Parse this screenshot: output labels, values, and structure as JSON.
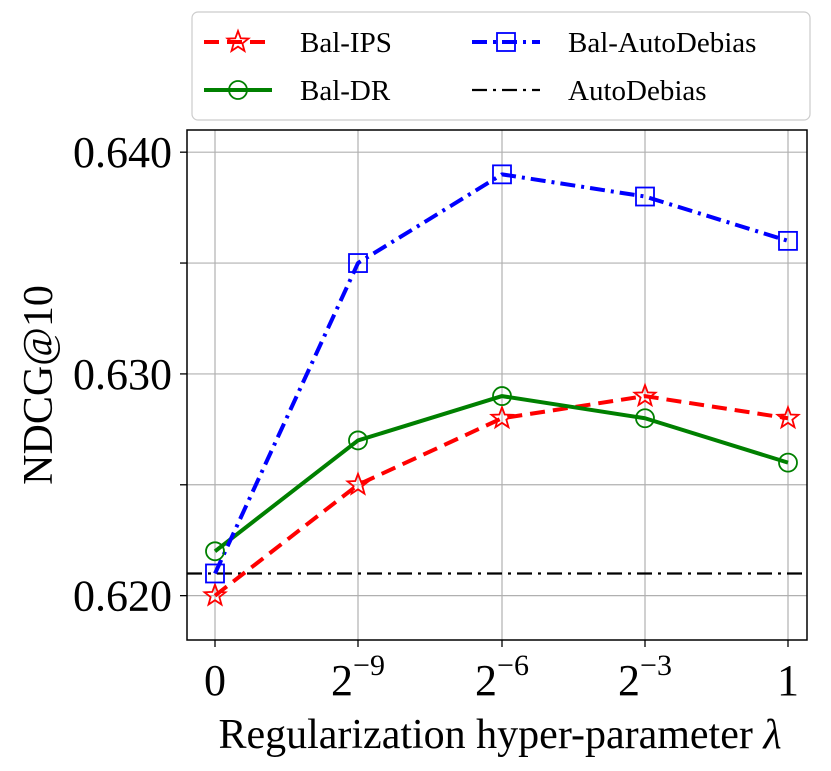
{
  "chart_data": {
    "type": "line",
    "title": "",
    "xlabel": "Regularization hyper-parameter λ",
    "xlabel_text": "Regularization hyper-parameter ",
    "xlabel_symbol": "λ",
    "ylabel": "NDCG@10",
    "categories": [
      {
        "base": "0",
        "exp": ""
      },
      {
        "base": "2",
        "exp": "−9"
      },
      {
        "base": "2",
        "exp": "−6"
      },
      {
        "base": "2",
        "exp": "−3"
      },
      {
        "base": "1",
        "exp": ""
      }
    ],
    "ylim": [
      0.618,
      0.641
    ],
    "yticks": [
      0.62,
      0.625,
      0.63,
      0.635,
      0.64
    ],
    "ytick_labels": [
      "0.620",
      "",
      "0.630",
      "",
      "0.640"
    ],
    "grid": true,
    "legend_position": "top, above plot, 2 columns",
    "series": [
      {
        "name": "Bal-IPS",
        "color": "#ff0000",
        "linestyle": "dashed",
        "marker": "star",
        "values": [
          0.62,
          0.625,
          0.628,
          0.629,
          0.628
        ]
      },
      {
        "name": "Bal-DR",
        "color": "#008000",
        "linestyle": "solid",
        "marker": "circle",
        "values": [
          0.622,
          0.627,
          0.629,
          0.628,
          0.626
        ]
      },
      {
        "name": "Bal-AutoDebias",
        "color": "#0000ff",
        "linestyle": "dashdot",
        "marker": "square",
        "values": [
          0.621,
          0.635,
          0.639,
          0.638,
          0.636
        ]
      }
    ],
    "reference_lines": [
      {
        "name": "AutoDebias",
        "color": "#000000",
        "linestyle": "dashdot",
        "value": 0.621
      }
    ]
  }
}
